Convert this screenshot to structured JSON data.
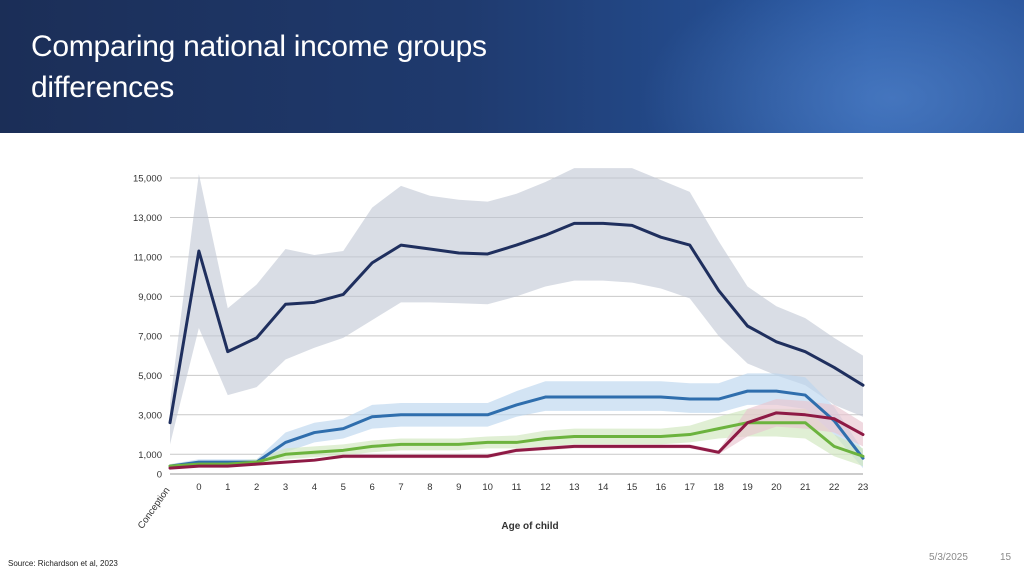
{
  "slide": {
    "title": "Comparing national income groups differences",
    "source": "Source: Richardson et al, 2023",
    "date": "5/3/2025",
    "page_number": "15"
  },
  "chart_data": {
    "type": "line",
    "title": "",
    "xlabel": "Age of child",
    "ylabel": "",
    "categories": [
      "Conception",
      "0",
      "1",
      "2",
      "3",
      "4",
      "5",
      "6",
      "7",
      "8",
      "9",
      "10",
      "11",
      "12",
      "13",
      "14",
      "15",
      "16",
      "17",
      "18",
      "19",
      "20",
      "21",
      "22",
      "23"
    ],
    "ylim": [
      0,
      15000
    ],
    "yticks": [
      0,
      1000,
      3000,
      5000,
      7000,
      9000,
      11000,
      13000,
      15000
    ],
    "ytick_labels": [
      "0",
      "1,000",
      "3,000",
      "5,000",
      "7,000",
      "9,000",
      "11,000",
      "13,000",
      "15,000"
    ],
    "grid": true,
    "series": [
      {
        "name": "Dark navy series",
        "color": "#1f2f5e",
        "band_color": "#bfc6d3",
        "values": [
          2600,
          11300,
          6200,
          6900,
          8600,
          8700,
          9100,
          10700,
          11600,
          11400,
          11200,
          11150,
          11600,
          12100,
          12700,
          12700,
          12600,
          12000,
          11600,
          9300,
          7500,
          6700,
          6200,
          5400,
          4500
        ],
        "lower": [
          1500,
          7400,
          4000,
          4400,
          5800,
          6400,
          6900,
          7800,
          8700,
          8700,
          8650,
          8600,
          9000,
          9500,
          9800,
          9800,
          9700,
          9400,
          8900,
          7000,
          5600,
          5000,
          4500,
          3500,
          2900
        ],
        "upper": [
          3600,
          15200,
          8400,
          9600,
          11400,
          11100,
          11300,
          13500,
          14600,
          14100,
          13900,
          13800,
          14200,
          14800,
          15500,
          15500,
          15500,
          14900,
          14300,
          11800,
          9500,
          8500,
          7900,
          6900,
          6000
        ]
      },
      {
        "name": "Light blue series",
        "color": "#2f6ead",
        "band_color": "#bcd6ee",
        "values": [
          400,
          600,
          600,
          600,
          1600,
          2100,
          2300,
          2900,
          3000,
          3000,
          3000,
          3000,
          3500,
          3900,
          3900,
          3900,
          3900,
          3900,
          3800,
          3800,
          4200,
          4200,
          4000,
          2700,
          800
        ],
        "lower": [
          300,
          450,
          450,
          450,
          1100,
          1600,
          1800,
          2300,
          2400,
          2400,
          2400,
          2400,
          2900,
          3200,
          3200,
          3200,
          3200,
          3200,
          3100,
          3100,
          3500,
          3500,
          3300,
          2000,
          300
        ],
        "upper": [
          500,
          750,
          750,
          750,
          2100,
          2600,
          2800,
          3500,
          3600,
          3600,
          3600,
          3600,
          4200,
          4700,
          4700,
          4700,
          4700,
          4700,
          4600,
          4600,
          5100,
          5100,
          4900,
          3400,
          1200
        ]
      },
      {
        "name": "Green series",
        "color": "#6cb33e",
        "band_color": "#cfe6bd",
        "values": [
          400,
          500,
          500,
          600,
          1000,
          1100,
          1200,
          1400,
          1500,
          1500,
          1500,
          1600,
          1600,
          1800,
          1900,
          1900,
          1900,
          1900,
          2000,
          2300,
          2600,
          2600,
          2600,
          1400,
          900
        ],
        "lower": [
          300,
          400,
          400,
          450,
          750,
          850,
          950,
          1100,
          1200,
          1200,
          1200,
          1300,
          1300,
          1400,
          1500,
          1500,
          1500,
          1500,
          1600,
          1800,
          1900,
          1900,
          1800,
          900,
          400
        ],
        "upper": [
          500,
          650,
          650,
          750,
          1300,
          1400,
          1500,
          1700,
          1800,
          1800,
          1800,
          1900,
          1950,
          2200,
          2300,
          2300,
          2300,
          2300,
          2450,
          2900,
          3300,
          3300,
          3300,
          2000,
          1300
        ]
      },
      {
        "name": "Maroon series",
        "color": "#8e1a45",
        "band_color": "#e8c4cf",
        "values": [
          300,
          400,
          400,
          500,
          600,
          700,
          900,
          900,
          900,
          900,
          900,
          900,
          1200,
          1300,
          1400,
          1400,
          1400,
          1400,
          1400,
          1100,
          2600,
          3100,
          3000,
          2800,
          2000
        ],
        "lower": [
          250,
          350,
          350,
          450,
          550,
          650,
          800,
          800,
          800,
          800,
          800,
          800,
          1100,
          1200,
          1300,
          1300,
          1300,
          1300,
          1300,
          1000,
          1900,
          2400,
          2300,
          2100,
          1400
        ],
        "upper": [
          350,
          450,
          450,
          550,
          650,
          750,
          1000,
          1000,
          1000,
          1000,
          1000,
          1000,
          1300,
          1400,
          1500,
          1500,
          1500,
          1500,
          1500,
          1200,
          3300,
          3800,
          3700,
          3500,
          2600
        ]
      }
    ]
  }
}
